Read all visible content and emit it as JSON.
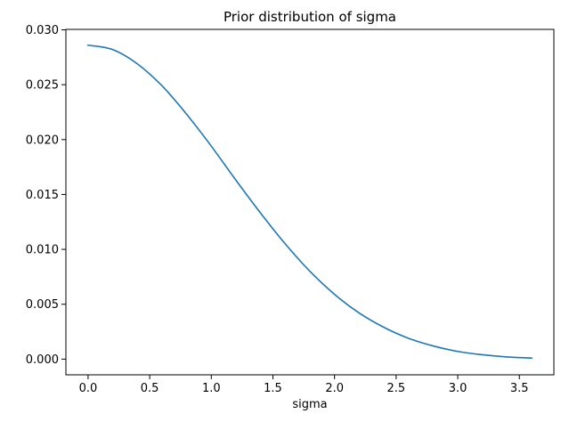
{
  "chart_data": {
    "type": "line",
    "title": "Prior distribution of sigma",
    "xlabel": "sigma",
    "ylabel": "",
    "xlim": [
      -0.18,
      3.78
    ],
    "ylim": [
      -0.00143,
      0.03004
    ],
    "xticks": [
      0.0,
      0.5,
      1.0,
      1.5,
      2.0,
      2.5,
      3.0,
      3.5
    ],
    "xtick_labels": [
      "0.0",
      "0.5",
      "1.0",
      "1.5",
      "2.0",
      "2.5",
      "3.0",
      "3.5"
    ],
    "yticks": [
      0.0,
      0.005,
      0.01,
      0.015,
      0.02,
      0.025,
      0.03
    ],
    "ytick_labels": [
      "0.000",
      "0.005",
      "0.010",
      "0.015",
      "0.020",
      "0.025",
      "0.030"
    ],
    "grid": false,
    "legend": "none",
    "series": [
      {
        "color": "#1f77b4",
        "x": [
          0.0,
          0.2,
          0.4,
          0.6,
          0.8,
          1.0,
          1.2,
          1.4,
          1.6,
          1.8,
          2.0,
          2.2,
          2.4,
          2.6,
          2.8,
          3.0,
          3.2,
          3.4,
          3.6
        ],
        "y": [
          0.0286,
          0.0282,
          0.0269,
          0.0249,
          0.0223,
          0.0194,
          0.0163,
          0.0133,
          0.0105,
          0.008,
          0.0059,
          0.0042,
          0.0029,
          0.0019,
          0.0012,
          0.0007,
          0.0004,
          0.0002,
          0.0001
        ]
      }
    ]
  }
}
